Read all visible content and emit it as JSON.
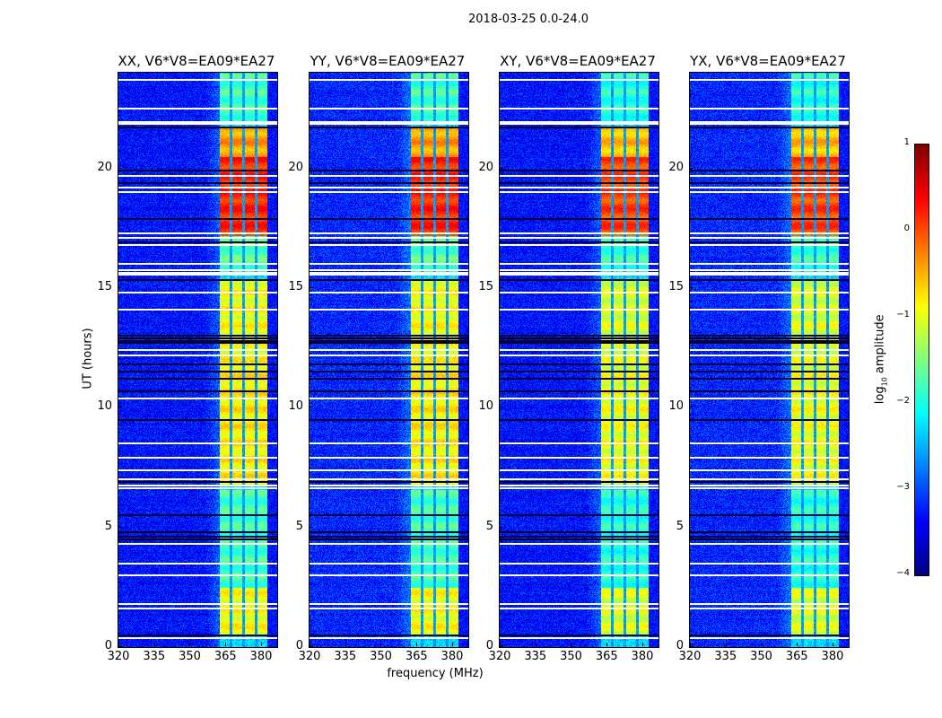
{
  "chart_data": {
    "type": "heatmap",
    "title": "2018-03-25 0.0-24.0",
    "xlabel": "frequency (MHz)",
    "ylabel": "UT (hours)",
    "xlim": [
      320,
      386.8
    ],
    "ylim": [
      0,
      24
    ],
    "xticks": [
      "320",
      "335",
      "350",
      "365",
      "380"
    ],
    "xtick_values": [
      320,
      335,
      350,
      365,
      380
    ],
    "yticks": [
      "0",
      "5",
      "10",
      "15",
      "20"
    ],
    "ytick_values": [
      0,
      5,
      10,
      15,
      20
    ],
    "panels": [
      {
        "title": "XX, V6*V8=EA09*EA27"
      },
      {
        "title": "YY, V6*V8=EA09*EA27"
      },
      {
        "title": "XY, V6*V8=EA09*EA27"
      },
      {
        "title": "YX, V6*V8=EA09*EA27"
      }
    ],
    "colorbar": {
      "label_main": "log",
      "label_sub": "10",
      "label_rest": " amplitude",
      "range": [
        -4,
        1
      ],
      "ticks": [
        "1",
        "0",
        "−1",
        "−2",
        "−3",
        "−4"
      ],
      "tick_values": [
        1,
        0,
        -1,
        -2,
        -3,
        -4
      ],
      "colormap": "jet"
    },
    "background_level": -3.3,
    "bright_band_mhz": [
      362.3,
      382.6
    ],
    "channel_gaps_mhz": [
      367.2,
      372.5,
      377.8
    ],
    "bright_segments": [
      {
        "t0": 0.5,
        "t1": 2.5,
        "level": -0.9
      },
      {
        "t0": 2.5,
        "t1": 6.6,
        "level": -1.8
      },
      {
        "t0": 6.8,
        "t1": 12.0,
        "level": -0.8
      },
      {
        "t0": 12.0,
        "t1": 15.4,
        "level": -0.9
      },
      {
        "t0": 15.7,
        "t1": 17.2,
        "level": -1.7
      },
      {
        "t0": 17.2,
        "t1": 20.5,
        "level": 0.2
      },
      {
        "t0": 20.5,
        "t1": 21.7,
        "level": -0.4
      },
      {
        "t0": 21.9,
        "t1": 24,
        "level": -1.8
      }
    ],
    "flagged_hours": [
      23.7,
      22.5,
      21.95,
      21.85,
      19.7,
      19.2,
      19.0,
      17.3,
      17.1,
      16.8,
      16.0,
      15.75,
      15.65,
      15.55,
      14.8,
      14.1,
      12.4,
      12.2,
      10.4,
      8.5,
      7.9,
      7.4,
      7.0,
      6.75,
      6.65,
      4.3,
      3.5,
      3.0,
      1.8,
      1.6,
      0.37
    ],
    "dark_hours": [
      21.7,
      19.9,
      19.4,
      17.9,
      16.9,
      15.35,
      13.0,
      12.9,
      12.8,
      12.7,
      11.8,
      11.5,
      11.2,
      10.7,
      9.5,
      6.9,
      5.5,
      4.8,
      4.6,
      4.5,
      0.5
    ]
  }
}
